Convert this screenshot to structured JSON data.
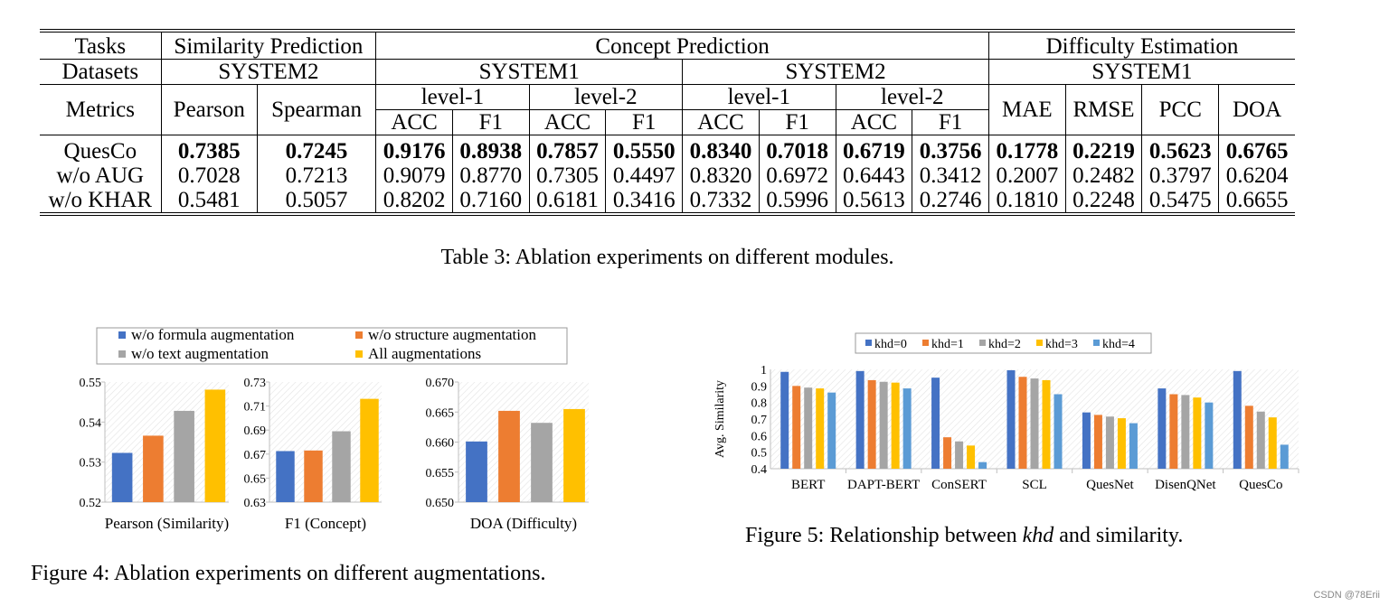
{
  "table": {
    "header": {
      "tasks_label": "Tasks",
      "similarity_prediction": "Similarity Prediction",
      "concept_prediction": "Concept Prediction",
      "difficulty_estimation": "Difficulty Estimation",
      "datasets_label": "Datasets",
      "system1": "SYSTEM1",
      "system2": "SYSTEM2",
      "metrics_label": "Metrics",
      "pearson": "Pearson",
      "spearman": "Spearman",
      "level1": "level-1",
      "level2": "level-2",
      "acc": "ACC",
      "f1": "F1",
      "mae": "MAE",
      "rmse": "RMSE",
      "pcc": "PCC",
      "doa": "DOA"
    },
    "rows": [
      {
        "name": "QuesCo",
        "values": [
          "0.7385",
          "0.7245",
          "0.9176",
          "0.8938",
          "0.7857",
          "0.5550",
          "0.8340",
          "0.7018",
          "0.6719",
          "0.3756",
          "0.1778",
          "0.2219",
          "0.5623",
          "0.6765"
        ],
        "bold": true
      },
      {
        "name": "w/o AUG",
        "values": [
          "0.7028",
          "0.7213",
          "0.9079",
          "0.8770",
          "0.7305",
          "0.4497",
          "0.8320",
          "0.6972",
          "0.6443",
          "0.3412",
          "0.2007",
          "0.2482",
          "0.3797",
          "0.6204"
        ],
        "bold": false
      },
      {
        "name": "w/o KHAR",
        "values": [
          "0.5481",
          "0.5057",
          "0.8202",
          "0.7160",
          "0.6181",
          "0.3416",
          "0.7332",
          "0.5996",
          "0.5613",
          "0.2746",
          "0.1810",
          "0.2248",
          "0.5475",
          "0.6655"
        ],
        "bold": false
      }
    ]
  },
  "captions": {
    "table3": "Table 3: Ablation experiments on different modules.",
    "figure4": "Figure 4: Ablation experiments on different augmentations.",
    "figure5_prefix": "Figure 5: Relationship between ",
    "figure5_var": "khd",
    "figure5_suffix": " and similarity."
  },
  "watermark": "CSDN @78Erii",
  "chart_data": [
    {
      "type": "bar",
      "legend": [
        "w/o formula augmentation",
        "w/o structure augmentation",
        "w/o text augmentation",
        "All augmentations"
      ],
      "colors": [
        "#4472C4",
        "#ED7D31",
        "#A5A5A5",
        "#FFC000"
      ],
      "panels": [
        {
          "xlabel": "Pearson (Similarity)",
          "ylim": [
            0.52,
            0.55
          ],
          "ticks": [
            "0.52",
            "0.53",
            "0.54",
            "0.55"
          ],
          "values": [
            0.5323,
            0.5366,
            0.5428,
            0.5481
          ]
        },
        {
          "xlabel": "F1 (Concept)",
          "ylim": [
            0.63,
            0.73
          ],
          "ticks": [
            "0.63",
            "0.65",
            "0.67",
            "0.69",
            "0.71",
            "0.73"
          ],
          "values": [
            0.6725,
            0.673,
            0.689,
            0.716
          ]
        },
        {
          "xlabel": "DOA (Difficulty)",
          "ylim": [
            0.65,
            0.67
          ],
          "ticks": [
            "0.650",
            "0.655",
            "0.660",
            "0.665",
            "0.670"
          ],
          "values": [
            0.6601,
            0.6652,
            0.6632,
            0.6655
          ]
        }
      ]
    },
    {
      "type": "bar",
      "categories": [
        "BERT",
        "DAPT-BERT",
        "ConSERT",
        "SCL",
        "QuesNet",
        "DisenQNet",
        "QuesCo"
      ],
      "ylabel": "Avg. Similarity",
      "ylim": [
        0.4,
        1.0
      ],
      "ticks": [
        "0.4",
        "0.5",
        "0.6",
        "0.7",
        "0.8",
        "0.9",
        "1"
      ],
      "series": [
        {
          "name": "khd=0",
          "color": "#4472C4",
          "values": [
            0.985,
            0.99,
            0.95,
            0.995,
            0.74,
            0.885,
            0.99
          ]
        },
        {
          "name": "khd=1",
          "color": "#ED7D31",
          "values": [
            0.9,
            0.935,
            0.59,
            0.955,
            0.725,
            0.85,
            0.78
          ]
        },
        {
          "name": "khd=2",
          "color": "#A5A5A5",
          "values": [
            0.89,
            0.925,
            0.565,
            0.945,
            0.715,
            0.845,
            0.745
          ]
        },
        {
          "name": "khd=3",
          "color": "#FFC000",
          "values": [
            0.885,
            0.92,
            0.54,
            0.935,
            0.705,
            0.83,
            0.71
          ]
        },
        {
          "name": "khd=4",
          "color": "#5B9BD5",
          "values": [
            0.86,
            0.885,
            0.44,
            0.85,
            0.675,
            0.8,
            0.545
          ]
        }
      ]
    }
  ]
}
